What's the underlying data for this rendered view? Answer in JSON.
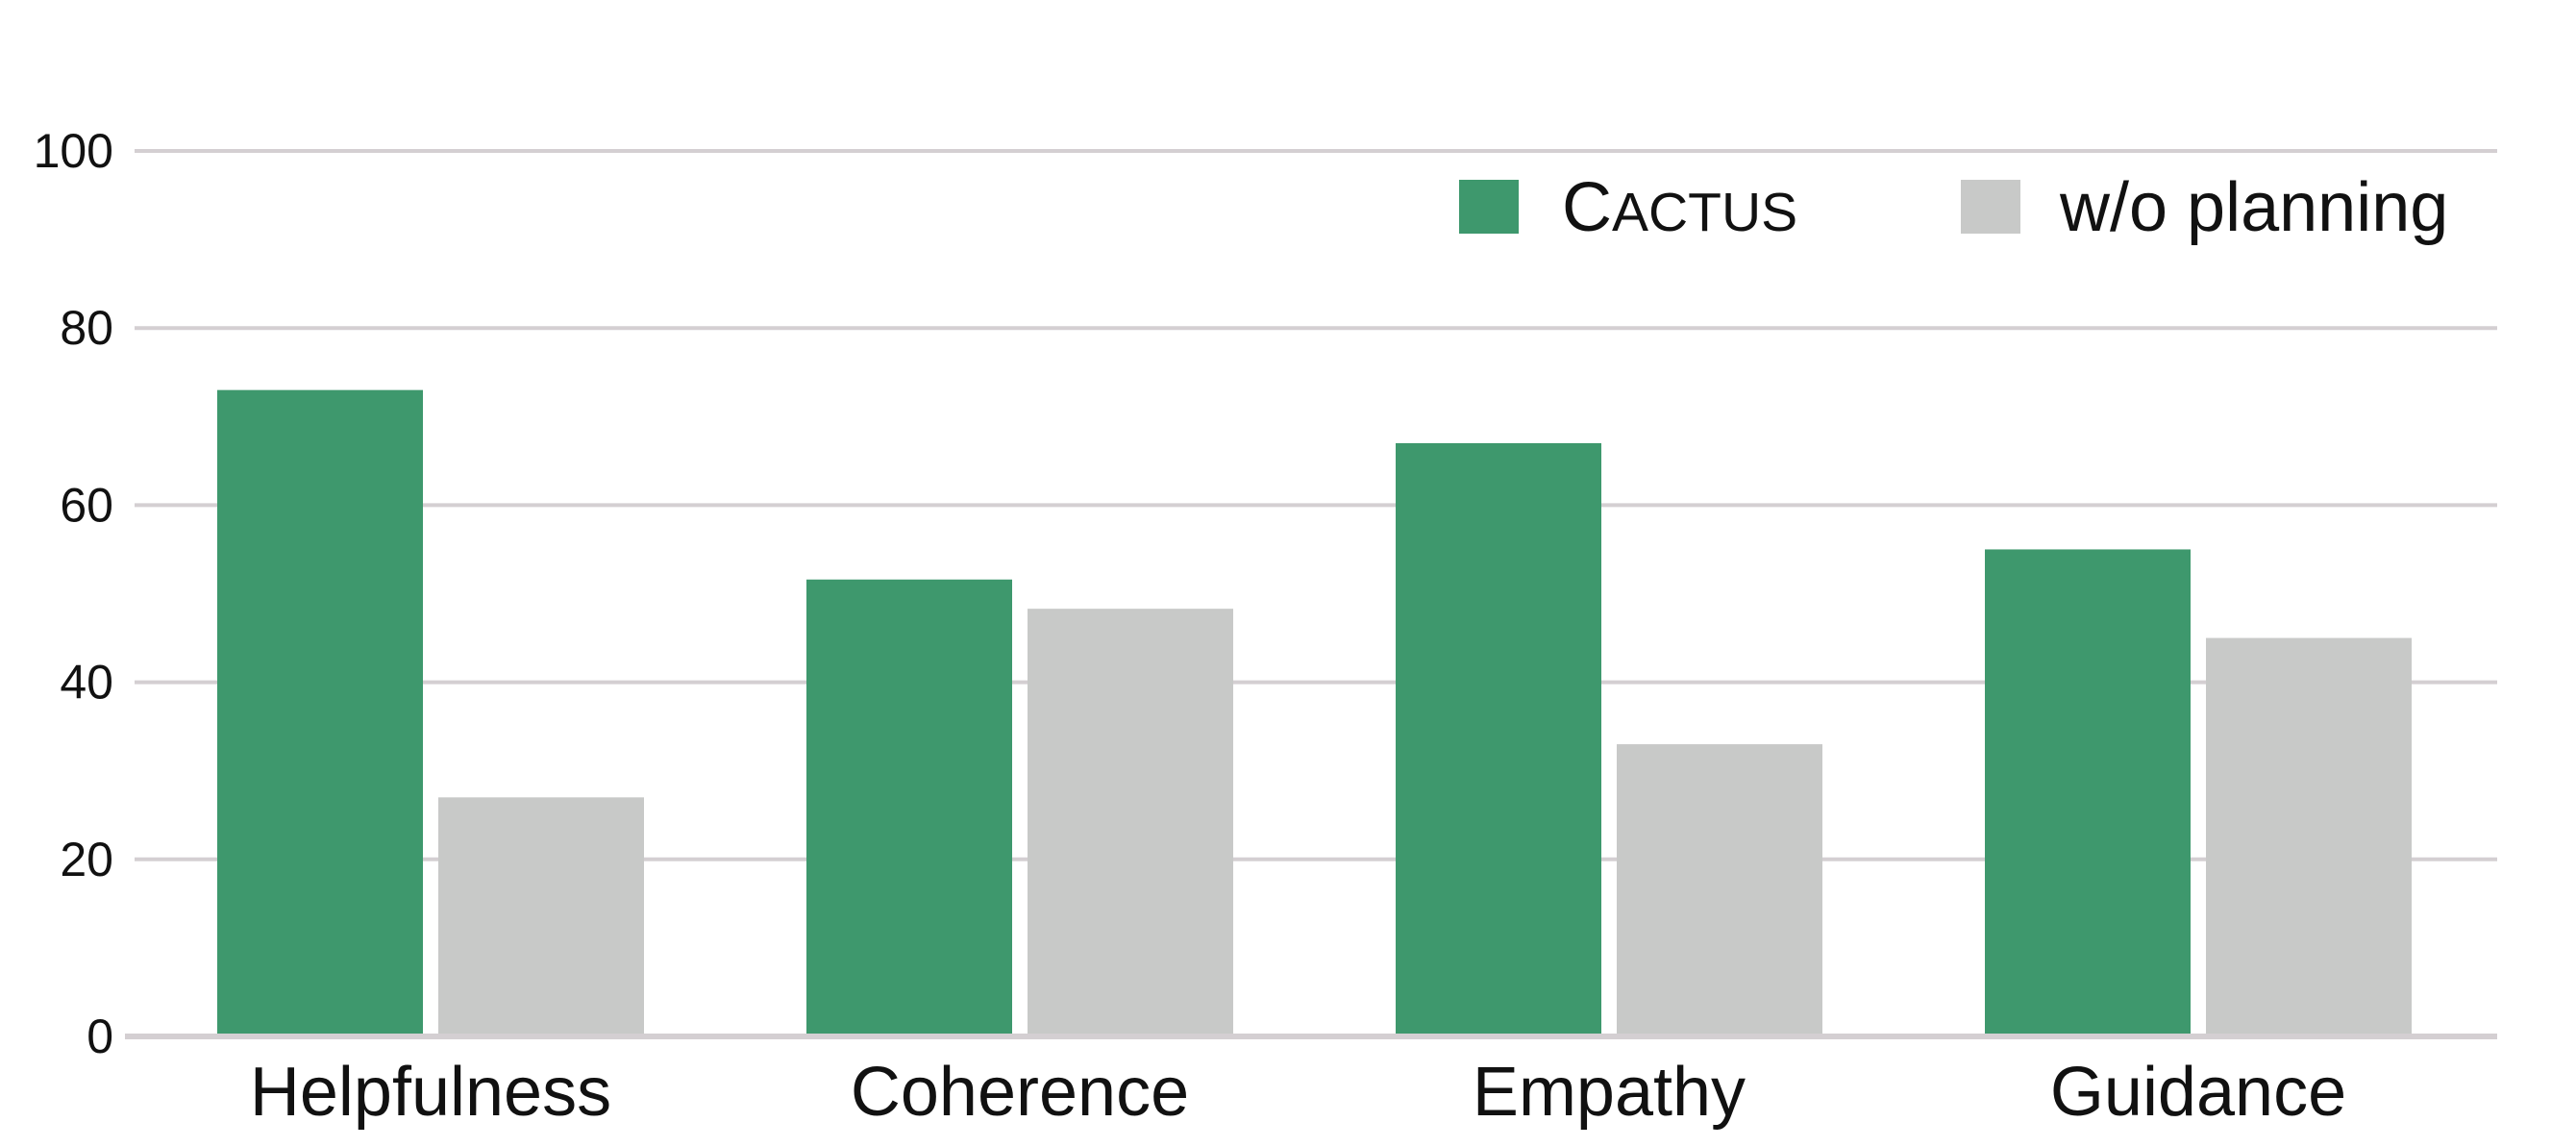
{
  "chart_data": {
    "type": "bar",
    "categories": [
      "Helpfulness",
      "Coherence",
      "Empathy",
      "Guidance"
    ],
    "series": [
      {
        "name": "CACTUS",
        "legend_first": "C",
        "legend_rest": "ACTUS",
        "color": "#3e986d",
        "values": [
          73,
          51.6,
          67,
          55
        ]
      },
      {
        "name": "w/o planning",
        "color": "#c8c9c8",
        "values": [
          27,
          48.3,
          33,
          45
        ]
      }
    ],
    "ylim": [
      0,
      100
    ],
    "yticks": [
      0,
      20,
      40,
      60,
      80,
      100
    ],
    "title": "",
    "xlabel": "",
    "ylabel": "",
    "grid": true,
    "gridline_color": "#d4cfd2",
    "legend_position": "top-right"
  }
}
